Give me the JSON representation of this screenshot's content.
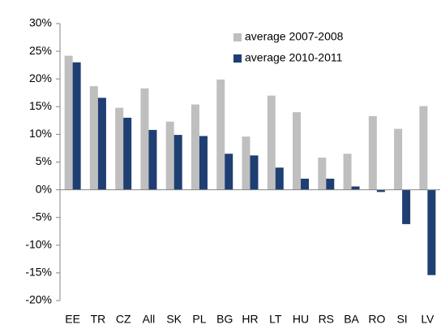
{
  "chart_data": {
    "type": "bar",
    "categories": [
      "EE",
      "TR",
      "CZ",
      "All",
      "SK",
      "PL",
      "BG",
      "HR",
      "LT",
      "HU",
      "RS",
      "BA",
      "RO",
      "SI",
      "LV"
    ],
    "series": [
      {
        "name": "average 2007-2008",
        "color": "#bfbfbf",
        "values": [
          24.2,
          18.7,
          14.8,
          18.3,
          12.3,
          15.4,
          19.9,
          9.6,
          17.0,
          14.0,
          5.8,
          6.5,
          13.3,
          11.0,
          15.1
        ]
      },
      {
        "name": "average 2010-2011",
        "color": "#1f3f73",
        "values": [
          23.0,
          16.6,
          13.0,
          10.8,
          9.9,
          9.7,
          6.5,
          6.2,
          4.0,
          2.0,
          2.0,
          0.6,
          -0.4,
          -6.2,
          -15.4
        ]
      }
    ],
    "ylim": [
      -20,
      30
    ],
    "yticks": [
      {
        "value": -20,
        "label": "-20%"
      },
      {
        "value": -15,
        "label": "-15%"
      },
      {
        "value": -10,
        "label": "-10%"
      },
      {
        "value": -5,
        "label": "-5%"
      },
      {
        "value": 0,
        "label": "0%"
      },
      {
        "value": 5,
        "label": "5%"
      },
      {
        "value": 10,
        "label": "10%"
      },
      {
        "value": 15,
        "label": "15%"
      },
      {
        "value": 20,
        "label": "20%"
      },
      {
        "value": 25,
        "label": "25%"
      },
      {
        "value": 30,
        "label": "30%"
      }
    ],
    "grid": false,
    "legend": "upper right"
  }
}
